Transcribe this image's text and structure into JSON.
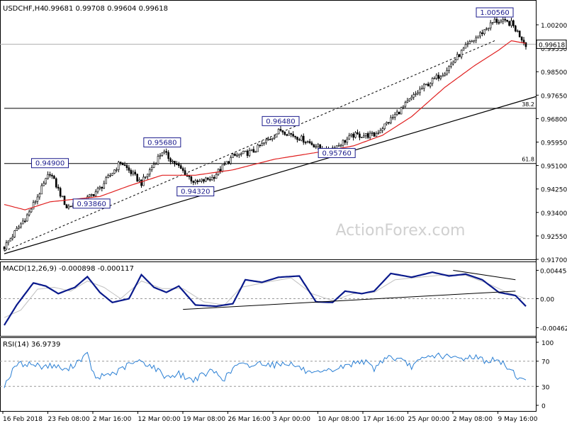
{
  "header": {
    "symbol": "USDCHF,H4",
    "ohlc": "0.99681 0.99708 0.99604 0.99618"
  },
  "watermark": "ActionForex.com",
  "price_axis_labels": [
    "1.00200",
    "0.99350",
    "0.98500",
    "0.97650",
    "0.96800",
    "0.95950",
    "0.95100",
    "0.94250",
    "0.93400",
    "0.92550",
    "0.91700"
  ],
  "price_tag": "0.99618",
  "fib_levels": [
    {
      "label": "38.2",
      "price": 0.9721
    },
    {
      "label": "61.8",
      "price": 0.9514
    }
  ],
  "annotations": [
    {
      "label": "0.94900",
      "bar": 22,
      "price": 0.949
    },
    {
      "label": "0.93860",
      "bar": 42,
      "price": 0.9386
    },
    {
      "label": "0.95680",
      "bar": 76,
      "price": 0.9568
    },
    {
      "label": "0.94320",
      "bar": 92,
      "price": 0.9432
    },
    {
      "label": "0.96480",
      "bar": 133,
      "price": 0.9648
    },
    {
      "label": "0.95760",
      "bar": 160,
      "price": 0.9576
    },
    {
      "label": "1.00560",
      "bar": 236,
      "price": 1.0056
    }
  ],
  "macd_panel": {
    "title": "MACD(12,26,9) -0.000898 -0.000117",
    "axis_labels": [
      "0.004454",
      "0.00",
      "-0.004624"
    ]
  },
  "rsi_panel": {
    "title": "RSI(14) 36.9739",
    "axis_labels": [
      "100",
      "70",
      "30",
      "0"
    ]
  },
  "x_axis_labels": [
    "16 Feb 2018",
    "23 Feb 08:00",
    "2 Mar 16:00",
    "12 Mar 00:00",
    "19 Mar 08:00",
    "26 Mar 16:00",
    "3 Apr 00:00",
    "10 Apr 08:00",
    "17 Apr 16:00",
    "25 Apr 00:00",
    "2 May 08:00",
    "9 May 16:00"
  ],
  "colors": {
    "candles": "#000000",
    "ma": "#e02020",
    "macd_main": "#0a1a8c",
    "macd_signal": "#c0c0c0",
    "rsi": "#2a7fd4",
    "annotation_text": "#1a1a8c"
  },
  "chart_data": {
    "type": "candlestick",
    "title": "USDCHF,H4",
    "ylim": [
      0.917,
      1.008
    ],
    "bars": 252,
    "x_tick_labels": [
      "16 Feb 2018",
      "23 Feb 08:00",
      "2 Mar 16:00",
      "12 Mar 00:00",
      "19 Mar 08:00",
      "26 Mar 16:00",
      "3 Apr 00:00",
      "10 Apr 08:00",
      "17 Apr 16:00",
      "25 Apr 00:00",
      "2 May 08:00",
      "9 May 16:00"
    ],
    "close_path": [
      [
        0,
        0.92
      ],
      [
        12,
        0.933
      ],
      [
        22,
        0.948
      ],
      [
        30,
        0.935
      ],
      [
        38,
        0.937
      ],
      [
        46,
        0.942
      ],
      [
        56,
        0.952
      ],
      [
        66,
        0.944
      ],
      [
        76,
        0.956
      ],
      [
        84,
        0.95
      ],
      [
        92,
        0.944
      ],
      [
        100,
        0.946
      ],
      [
        110,
        0.954
      ],
      [
        120,
        0.956
      ],
      [
        133,
        0.964
      ],
      [
        145,
        0.96
      ],
      [
        155,
        0.956
      ],
      [
        160,
        0.958
      ],
      [
        168,
        0.962
      ],
      [
        178,
        0.962
      ],
      [
        190,
        0.971
      ],
      [
        200,
        0.979
      ],
      [
        212,
        0.986
      ],
      [
        222,
        0.995
      ],
      [
        236,
        1.005
      ],
      [
        244,
        1.004
      ],
      [
        251,
        0.9962
      ]
    ],
    "ma_path": [
      [
        0,
        0.936
      ],
      [
        10,
        0.934
      ],
      [
        22,
        0.937
      ],
      [
        34,
        0.938
      ],
      [
        46,
        0.939
      ],
      [
        60,
        0.943
      ],
      [
        76,
        0.947
      ],
      [
        92,
        0.947
      ],
      [
        110,
        0.949
      ],
      [
        130,
        0.953
      ],
      [
        150,
        0.9555
      ],
      [
        168,
        0.958
      ],
      [
        182,
        0.962
      ],
      [
        196,
        0.969
      ],
      [
        212,
        0.98
      ],
      [
        226,
        0.988
      ],
      [
        238,
        0.994
      ],
      [
        244,
        0.9975
      ],
      [
        251,
        0.9965
      ]
    ],
    "trendlines": [
      {
        "from": [
          0,
          0.9175
        ],
        "to": [
          251,
          0.9765
        ]
      },
      {
        "from": [
          0,
          0.9185
        ],
        "to": [
          236,
          0.9975
        ]
      }
    ],
    "macd": {
      "ylim": [
        -0.005,
        0.005
      ],
      "main_path": [
        [
          0,
          -0.0042
        ],
        [
          6,
          -0.001
        ],
        [
          14,
          0.0025
        ],
        [
          20,
          0.002
        ],
        [
          26,
          0.0008
        ],
        [
          34,
          0.0018
        ],
        [
          40,
          0.0035
        ],
        [
          46,
          0.001
        ],
        [
          52,
          -0.0006
        ],
        [
          60,
          0.0
        ],
        [
          66,
          0.0038
        ],
        [
          72,
          0.0018
        ],
        [
          78,
          0.001
        ],
        [
          84,
          0.002
        ],
        [
          92,
          -0.001
        ],
        [
          102,
          -0.0012
        ],
        [
          110,
          -0.0008
        ],
        [
          116,
          0.003
        ],
        [
          124,
          0.0026
        ],
        [
          132,
          0.0034
        ],
        [
          142,
          0.0036
        ],
        [
          150,
          -0.0005
        ],
        [
          158,
          -0.0006
        ],
        [
          164,
          0.0012
        ],
        [
          172,
          0.0008
        ],
        [
          178,
          0.0012
        ],
        [
          186,
          0.004
        ],
        [
          196,
          0.0034
        ],
        [
          206,
          0.0042
        ],
        [
          214,
          0.0036
        ],
        [
          222,
          0.0039
        ],
        [
          230,
          0.003
        ],
        [
          238,
          0.001
        ],
        [
          246,
          0.0005
        ],
        [
          251,
          -0.0012
        ]
      ],
      "signal_path": [
        [
          0,
          -0.003
        ],
        [
          8,
          -0.0018
        ],
        [
          16,
          0.0015
        ],
        [
          24,
          0.0018
        ],
        [
          32,
          0.0012
        ],
        [
          40,
          0.0028
        ],
        [
          48,
          0.0018
        ],
        [
          56,
          0.0
        ],
        [
          66,
          0.0028
        ],
        [
          76,
          0.0016
        ],
        [
          86,
          0.0016
        ],
        [
          96,
          -0.0005
        ],
        [
          106,
          -0.001
        ],
        [
          114,
          0.0018
        ],
        [
          126,
          0.0026
        ],
        [
          138,
          0.0033
        ],
        [
          148,
          0.0008
        ],
        [
          158,
          -0.0003
        ],
        [
          168,
          0.0008
        ],
        [
          178,
          0.001
        ],
        [
          188,
          0.003
        ],
        [
          200,
          0.0034
        ],
        [
          212,
          0.0038
        ],
        [
          222,
          0.0037
        ],
        [
          232,
          0.0025
        ],
        [
          242,
          0.001
        ],
        [
          251,
          0.0
        ]
      ],
      "trendlines": [
        {
          "from": [
            86,
            -0.0017
          ],
          "to": [
            246,
            0.0012
          ]
        },
        {
          "from": [
            216,
            0.0045
          ],
          "to": [
            246,
            0.003
          ]
        }
      ]
    },
    "rsi": {
      "ylim": [
        0,
        100
      ],
      "levels": [
        70,
        30
      ],
      "path": [
        [
          0,
          32
        ],
        [
          6,
          65
        ],
        [
          12,
          66
        ],
        [
          18,
          62
        ],
        [
          24,
          63
        ],
        [
          30,
          55
        ],
        [
          36,
          72
        ],
        [
          40,
          80
        ],
        [
          44,
          40
        ],
        [
          48,
          48
        ],
        [
          54,
          52
        ],
        [
          60,
          65
        ],
        [
          66,
          70
        ],
        [
          72,
          60
        ],
        [
          78,
          45
        ],
        [
          84,
          50
        ],
        [
          90,
          40
        ],
        [
          96,
          48
        ],
        [
          100,
          55
        ],
        [
          106,
          42
        ],
        [
          112,
          65
        ],
        [
          118,
          62
        ],
        [
          124,
          68
        ],
        [
          130,
          64
        ],
        [
          136,
          68
        ],
        [
          142,
          60
        ],
        [
          148,
          48
        ],
        [
          154,
          52
        ],
        [
          160,
          58
        ],
        [
          166,
          64
        ],
        [
          172,
          72
        ],
        [
          178,
          58
        ],
        [
          184,
          78
        ],
        [
          190,
          72
        ],
        [
          196,
          62
        ],
        [
          202,
          74
        ],
        [
          208,
          80
        ],
        [
          214,
          76
        ],
        [
          220,
          74
        ],
        [
          226,
          78
        ],
        [
          232,
          70
        ],
        [
          236,
          72
        ],
        [
          240,
          66
        ],
        [
          244,
          56
        ],
        [
          248,
          42
        ],
        [
          251,
          37
        ]
      ]
    }
  }
}
